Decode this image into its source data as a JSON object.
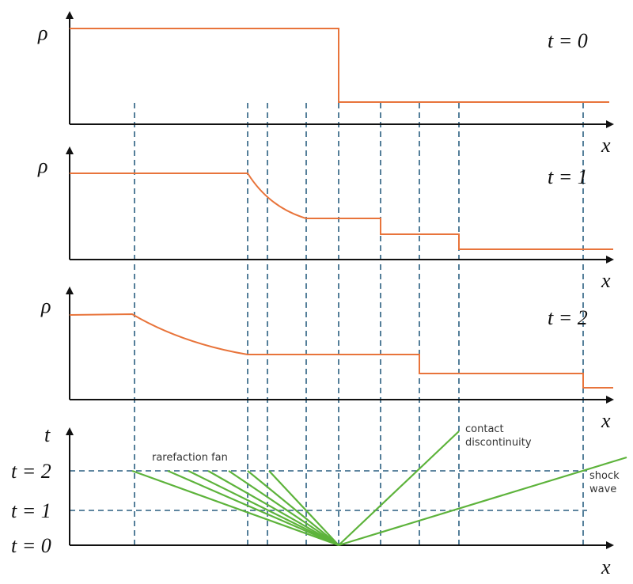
{
  "panels": [
    {
      "y_label": "ρ",
      "x_label": "x",
      "time_label": "t = 0"
    },
    {
      "y_label": "ρ",
      "x_label": "x",
      "time_label": "t = 1"
    },
    {
      "y_label": "ρ",
      "x_label": "x",
      "time_label": "t = 2"
    }
  ],
  "xt_diagram": {
    "y_label": "t",
    "x_label": "x",
    "time_ticks": [
      "t = 2",
      "t = 1",
      "t = 0"
    ],
    "rarefaction_fan": "rarefaction fan",
    "contact_discontinuity": [
      "contact",
      "discontinuity"
    ],
    "shock_wave": [
      "shock",
      "wave"
    ]
  }
}
